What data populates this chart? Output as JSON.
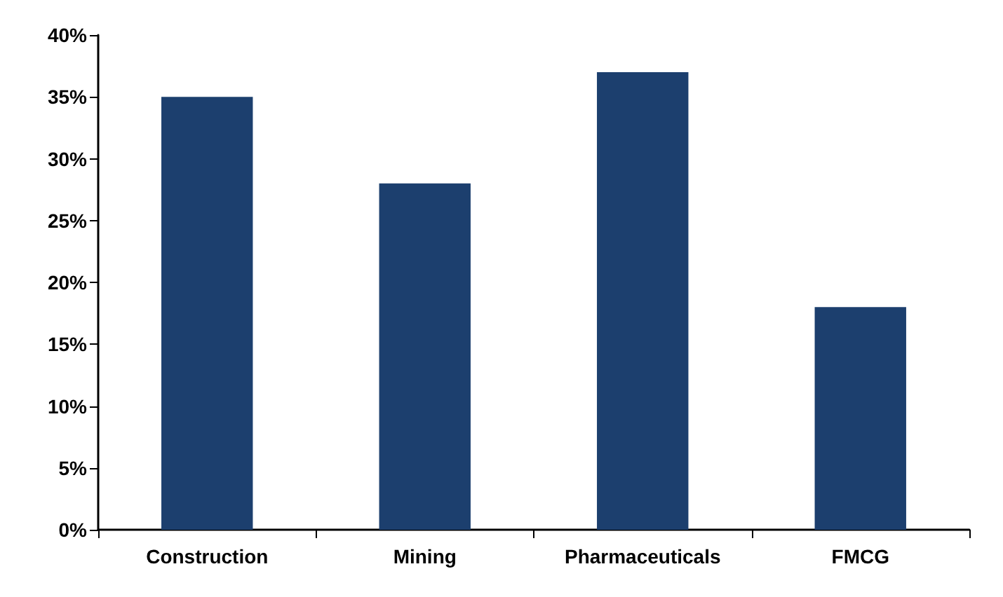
{
  "chart_data": {
    "type": "bar",
    "categories": [
      "Construction",
      "Mining",
      "Pharmaceuticals",
      "FMCG"
    ],
    "values": [
      35,
      28,
      37,
      18
    ],
    "color": "#1c3f6e",
    "ylim": [
      0,
      40
    ],
    "yticks": [
      {
        "value": 0,
        "label": "0%"
      },
      {
        "value": 5,
        "label": "5%"
      },
      {
        "value": 10,
        "label": "10%"
      },
      {
        "value": 15,
        "label": "15%"
      },
      {
        "value": 20,
        "label": "20%"
      },
      {
        "value": 25,
        "label": "25%"
      },
      {
        "value": 30,
        "label": "30%"
      },
      {
        "value": 35,
        "label": "35%"
      },
      {
        "value": 40,
        "label": "40%"
      }
    ],
    "grid": false
  }
}
